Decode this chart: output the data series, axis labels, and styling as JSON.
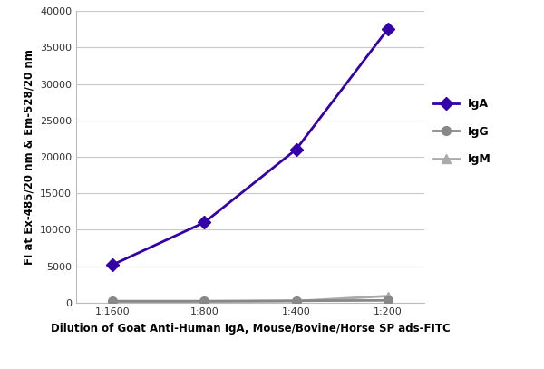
{
  "x_labels": [
    "1:1600",
    "1:800",
    "1:400",
    "1:200"
  ],
  "x_positions": [
    0,
    1,
    2,
    3
  ],
  "IgA_values": [
    5200,
    11000,
    21000,
    37500
  ],
  "IgG_values": [
    200,
    200,
    250,
    300
  ],
  "IgM_values": [
    150,
    150,
    200,
    900
  ],
  "IgA_color": "#3300aa",
  "IgG_color": "#888888",
  "IgM_color": "#aaaaaa",
  "IgA_marker": "D",
  "IgG_marker": "o",
  "IgM_marker": "^",
  "ylabel": "FI at Ex-485/20 nm & Em-528/20 nm",
  "xlabel": "Dilution of Goat Anti-Human IgA, Mouse/Bovine/Horse SP ads-FITC",
  "ylim": [
    0,
    40000
  ],
  "yticks": [
    0,
    5000,
    10000,
    15000,
    20000,
    25000,
    30000,
    35000,
    40000
  ],
  "axis_label_fontsize": 8.5,
  "tick_fontsize": 8,
  "legend_fontsize": 9,
  "linewidth": 2.0,
  "markersize": 7,
  "background_color": "#ffffff",
  "grid_color": "#c8c8c8"
}
